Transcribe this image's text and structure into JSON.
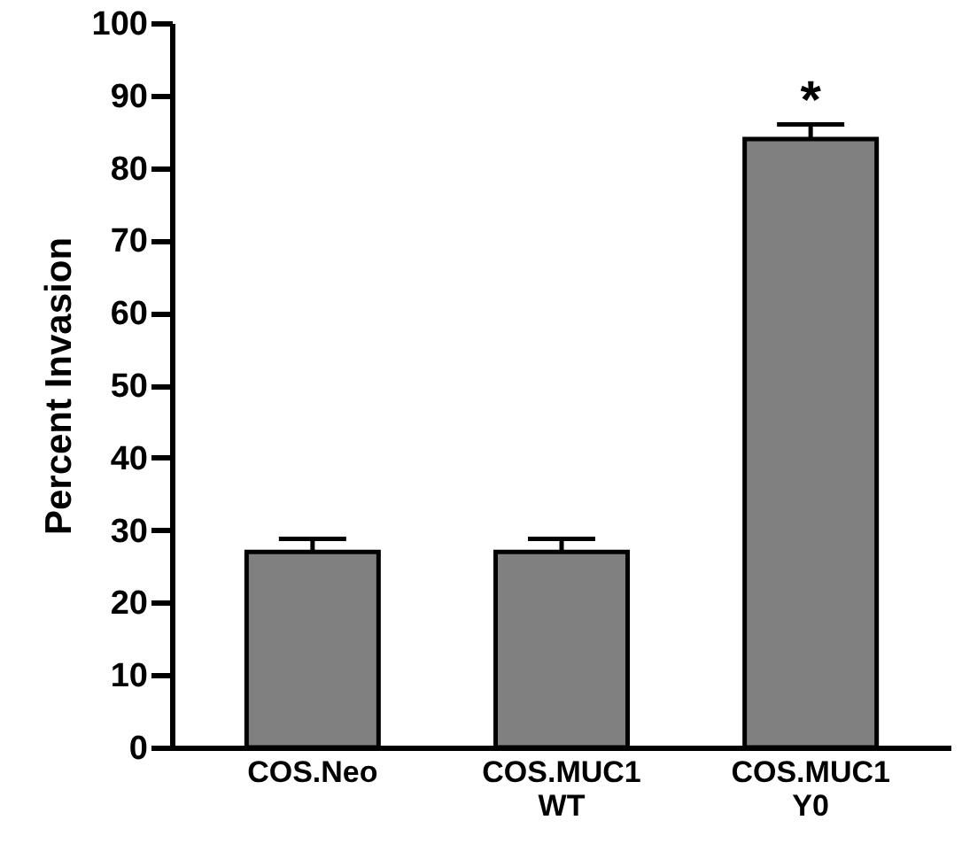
{
  "chart_data": {
    "type": "bar",
    "ylabel": "Percent Invasion",
    "categories": [
      "COS.Neo",
      "COS.MUC1 WT",
      "COS.MUC1 Y0"
    ],
    "values": [
      27,
      27,
      84
    ],
    "errors": [
      [
        27,
        28.8
      ],
      [
        27,
        28.8
      ],
      [
        84,
        86
      ]
    ],
    "color": "#808080",
    "ylim": [
      0,
      100
    ],
    "yticks": [
      0,
      10,
      20,
      30,
      40,
      50,
      60,
      70,
      80,
      90,
      100
    ],
    "annotations": [
      "*"
    ]
  }
}
